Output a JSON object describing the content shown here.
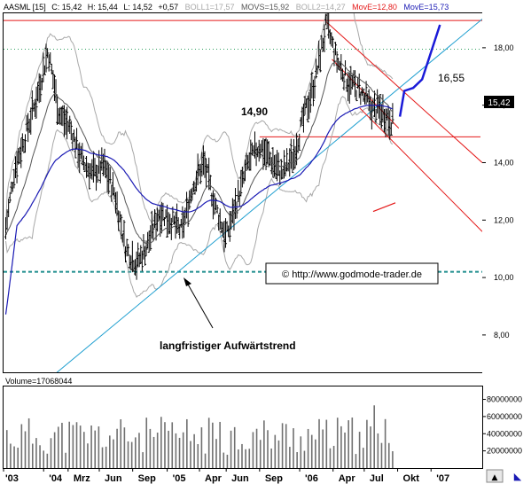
{
  "chart_data": [
    {
      "type": "candlestick",
      "header": {
        "symbol": "AASML [15]",
        "close": "C: 15,42",
        "high": "H: 15,44",
        "low": "L: 14,52",
        "change": "+0,57",
        "boll1": "BOLL1=17,57",
        "movs": "MOVS=15,92",
        "boll2": "BOLL2=14,27",
        "move1": "MovE=12,80",
        "move2": "MovE=15,73"
      },
      "yticks": [
        "18,00",
        "16,00",
        "14,00",
        "12,00",
        "10,00",
        "8,00"
      ],
      "ylim": [
        6.7,
        19.2
      ],
      "xtick_labels": [
        "'03",
        "'04",
        "Mrz",
        "Jun",
        "Sep",
        "'05",
        "Apr",
        "Jun",
        "Sep",
        "'06",
        "Apr",
        "Jul",
        "Okt",
        "'07"
      ],
      "xlim": [
        0,
        43
      ],
      "last_price_label": "15,42",
      "annotations": {
        "level_1490": "14,90",
        "target_1655": "16,55",
        "trend_text": "langfristiger Aufwärtstrend",
        "copyright": "© http://www.godmode-trader.de"
      },
      "levels": {
        "top_red": 18.95,
        "dotted_green": 17.95,
        "support_1490": 14.9,
        "dashed_teal": 10.2
      },
      "price_path": [
        [
          0,
          11.2
        ],
        [
          1,
          13.8
        ],
        [
          2,
          15.0
        ],
        [
          3,
          16.3
        ],
        [
          4,
          17.9
        ],
        [
          5,
          15.7
        ],
        [
          6,
          15.2
        ],
        [
          7,
          14.1
        ],
        [
          8,
          13.6
        ],
        [
          9,
          13.9
        ],
        [
          10,
          12.9
        ],
        [
          11,
          11.0
        ],
        [
          12,
          10.5
        ],
        [
          13,
          11.2
        ],
        [
          14,
          12.3
        ],
        [
          15,
          12.0
        ],
        [
          16,
          11.6
        ],
        [
          17,
          13.2
        ],
        [
          18,
          14.0
        ],
        [
          19,
          12.5
        ],
        [
          20,
          11.4
        ],
        [
          21,
          12.7
        ],
        [
          22,
          14.0
        ],
        [
          23,
          14.6
        ],
        [
          24,
          14.1
        ],
        [
          25,
          13.6
        ],
        [
          26,
          14.2
        ],
        [
          27,
          15.6
        ],
        [
          28,
          16.9
        ],
        [
          29,
          18.8
        ],
        [
          30,
          17.5
        ],
        [
          31,
          16.8
        ],
        [
          32,
          16.5
        ],
        [
          33,
          15.9
        ],
        [
          34,
          15.8
        ],
        [
          35,
          15.4
        ]
      ],
      "forecast_path": [
        [
          35.6,
          15.6
        ],
        [
          36.0,
          16.5
        ],
        [
          36.8,
          16.6
        ],
        [
          37.6,
          16.9
        ],
        [
          39.2,
          18.8
        ]
      ],
      "volume": {
        "label": "Volume=17068044",
        "yticks": [
          "80000000",
          "60000000",
          "40000000",
          "20000000"
        ],
        "ylim": [
          0,
          95000000
        ]
      }
    }
  ],
  "ui": {
    "up_arrow_glyph": "▲",
    "corner_glyph": "◣"
  },
  "colors": {
    "red": "#e41818",
    "blue": "#1a1ab4",
    "cyan": "#1f9fd0",
    "teal_dashed": "#1f8e8e",
    "green_dotted": "#2fa060",
    "price": "#000000",
    "band": "#a8a8a8",
    "forecast": "#1a1ad8"
  }
}
